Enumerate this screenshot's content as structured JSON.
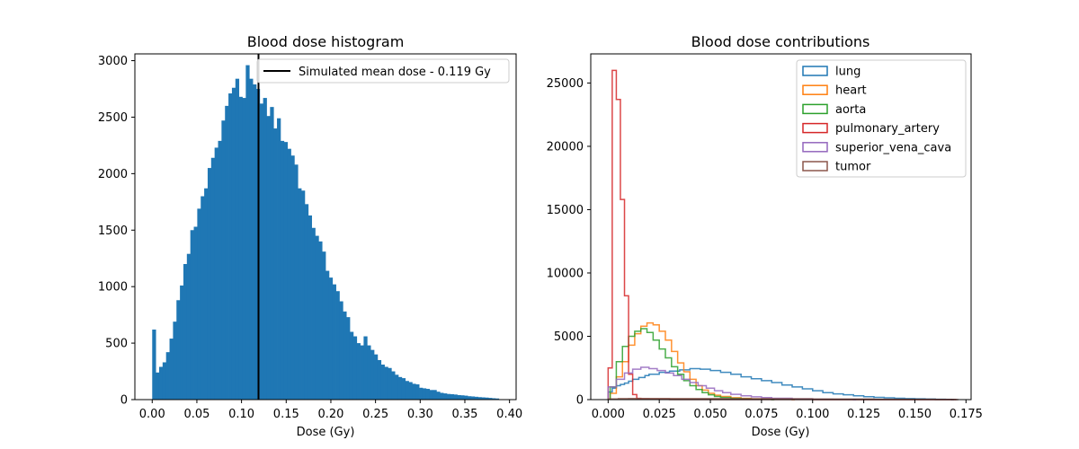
{
  "chart_data": [
    {
      "type": "bar",
      "title": "Blood dose histogram",
      "xlabel": "Dose (Gy)",
      "ylabel": "",
      "xlim": [
        -0.0194,
        0.4074
      ],
      "ylim": [
        0,
        3060
      ],
      "xticks": [
        0.0,
        0.05,
        0.1,
        0.15,
        0.2,
        0.25,
        0.3,
        0.35,
        0.4
      ],
      "xtick_labels": [
        "0.00",
        "0.05",
        "0.10",
        "0.15",
        "0.20",
        "0.25",
        "0.30",
        "0.35",
        "0.40"
      ],
      "yticks": [
        0,
        500,
        1000,
        1500,
        2000,
        2500,
        3000
      ],
      "ytick_labels": [
        "0",
        "500",
        "1000",
        "1500",
        "2000",
        "2500",
        "3000"
      ],
      "bin_start": 0.0,
      "bin_width": 0.00388,
      "color": "#1f77b4",
      "values": [
        620,
        240,
        290,
        330,
        420,
        540,
        690,
        880,
        1010,
        1200,
        1290,
        1500,
        1530,
        1690,
        1800,
        1870,
        2050,
        2140,
        2230,
        2290,
        2470,
        2600,
        2710,
        2760,
        2840,
        2680,
        2670,
        2960,
        2840,
        2790,
        2750,
        2620,
        2670,
        2510,
        2590,
        2400,
        2490,
        2290,
        2280,
        2220,
        2160,
        2080,
        1870,
        1850,
        1730,
        1630,
        1520,
        1450,
        1400,
        1310,
        1140,
        1080,
        1020,
        960,
        870,
        780,
        730,
        600,
        560,
        500,
        480,
        560,
        480,
        440,
        400,
        350,
        310,
        290,
        280,
        250,
        220,
        200,
        190,
        165,
        155,
        140,
        135,
        105,
        100,
        95,
        85,
        85,
        70,
        60,
        55,
        50,
        48,
        45,
        40,
        38,
        35,
        30,
        28,
        25,
        22,
        20,
        18,
        15,
        12,
        10
      ],
      "annotation": {
        "type": "vline",
        "x": 0.119,
        "label": "Simulated mean dose - 0.119 Gy",
        "color": "#000000"
      },
      "legend": {
        "placement": "top-right",
        "entries": [
          "Simulated mean dose - 0.119 Gy"
        ]
      },
      "grid": false
    },
    {
      "type": "line",
      "title": "Blood dose contributions",
      "xlabel": "Dose (Gy)",
      "ylabel": "",
      "xlim": [
        -0.0085,
        0.1775
      ],
      "ylim": [
        0,
        27300
      ],
      "xticks": [
        0.0,
        0.025,
        0.05,
        0.075,
        0.1,
        0.125,
        0.15,
        0.175
      ],
      "xtick_labels": [
        "0.000",
        "0.025",
        "0.050",
        "0.075",
        "0.100",
        "0.125",
        "0.150",
        "0.175"
      ],
      "yticks": [
        0,
        5000,
        10000,
        15000,
        20000,
        25000
      ],
      "ytick_labels": [
        "0",
        "5000",
        "10000",
        "15000",
        "20000",
        "25000"
      ],
      "legend": {
        "placement": "top-right"
      },
      "grid": false,
      "series": [
        {
          "name": "lung",
          "color": "#1f77b4",
          "x": [
            0.0,
            0.002,
            0.004,
            0.006,
            0.008,
            0.01,
            0.012,
            0.015,
            0.018,
            0.02,
            0.025,
            0.03,
            0.035,
            0.04,
            0.045,
            0.05,
            0.055,
            0.06,
            0.065,
            0.07,
            0.075,
            0.08,
            0.085,
            0.09,
            0.095,
            0.1,
            0.105,
            0.11,
            0.115,
            0.12,
            0.125,
            0.13,
            0.135,
            0.14,
            0.145,
            0.15,
            0.155,
            0.16,
            0.165,
            0.168
          ],
          "values": [
            600,
            900,
            1100,
            1200,
            1300,
            1450,
            1600,
            1750,
            1900,
            2000,
            2150,
            2250,
            2350,
            2450,
            2400,
            2300,
            2150,
            2000,
            1800,
            1650,
            1500,
            1350,
            1150,
            1000,
            850,
            700,
            550,
            450,
            380,
            300,
            230,
            180,
            140,
            110,
            80,
            60,
            40,
            25,
            15,
            0
          ]
        },
        {
          "name": "heart",
          "color": "#ff7f0e",
          "x": [
            0.001,
            0.004,
            0.007,
            0.01,
            0.013,
            0.016,
            0.019,
            0.022,
            0.025,
            0.028,
            0.031,
            0.034,
            0.037,
            0.04,
            0.043,
            0.046,
            0.049,
            0.052,
            0.055,
            0.06,
            0.065,
            0.07,
            0.08,
            0.09
          ],
          "values": [
            500,
            1800,
            3000,
            4300,
            5200,
            5800,
            6050,
            5900,
            5400,
            4700,
            3800,
            2900,
            2200,
            1600,
            1100,
            750,
            500,
            350,
            250,
            150,
            100,
            60,
            30,
            0
          ]
        },
        {
          "name": "aorta",
          "color": "#2ca02c",
          "x": [
            0.001,
            0.004,
            0.007,
            0.01,
            0.013,
            0.016,
            0.019,
            0.022,
            0.025,
            0.028,
            0.031,
            0.034,
            0.037,
            0.04,
            0.043,
            0.046,
            0.049,
            0.052,
            0.055,
            0.06,
            0.065,
            0.07,
            0.08
          ],
          "values": [
            1000,
            3000,
            4200,
            5000,
            5400,
            5600,
            5300,
            4700,
            4000,
            3300,
            2600,
            2000,
            1500,
            1100,
            800,
            550,
            380,
            250,
            170,
            100,
            60,
            30,
            0
          ]
        },
        {
          "name": "pulmonary_artery",
          "color": "#d62728",
          "x": [
            0.0,
            0.002,
            0.004,
            0.006,
            0.008,
            0.01,
            0.012,
            0.014,
            0.016,
            0.02,
            0.03,
            0.05,
            0.1,
            0.169
          ],
          "values": [
            2500,
            26000,
            23700,
            15800,
            8200,
            2000,
            400,
            100,
            40,
            20,
            10,
            5,
            2,
            0
          ]
        },
        {
          "name": "superior_vena_cava",
          "color": "#9467bd",
          "x": [
            0.0,
            0.004,
            0.008,
            0.012,
            0.016,
            0.02,
            0.024,
            0.028,
            0.032,
            0.036,
            0.04,
            0.044,
            0.048,
            0.052,
            0.056,
            0.06,
            0.065,
            0.07,
            0.075,
            0.08,
            0.09,
            0.1,
            0.11,
            0.12
          ],
          "values": [
            1000,
            1600,
            2100,
            2400,
            2550,
            2450,
            2300,
            2100,
            1900,
            1600,
            1350,
            1100,
            900,
            700,
            550,
            420,
            300,
            220,
            160,
            110,
            60,
            30,
            15,
            0
          ]
        },
        {
          "name": "tumor",
          "color": "#8c564b",
          "x": [
            0.0,
            0.005,
            0.01,
            0.03,
            0.06,
            0.1,
            0.13,
            0.16,
            0.17
          ],
          "values": [
            50,
            80,
            90,
            80,
            60,
            40,
            25,
            10,
            0
          ]
        }
      ]
    }
  ]
}
